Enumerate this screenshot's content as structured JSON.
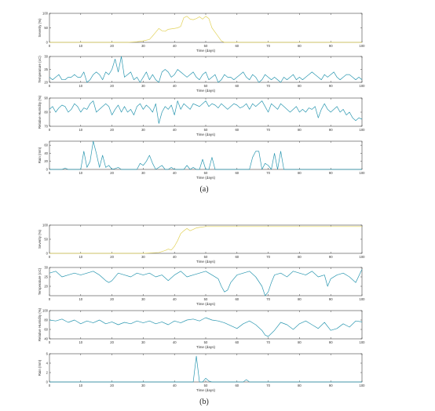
{
  "figure": {
    "caption_a": "(a)",
    "caption_b": "(b)"
  },
  "colors": {
    "severity_line": "#e2d25a",
    "series_line": "#2a97b0",
    "axis": "#444444",
    "text": "#333333"
  },
  "chart_data": [
    {
      "type": "line",
      "panel": "a",
      "ylabel": "Severity (%)",
      "xlabel": "Time (days)",
      "xlim": [
        0,
        100
      ],
      "ylim": [
        0,
        100
      ],
      "xticks": [
        0,
        10,
        20,
        30,
        40,
        50,
        60,
        70,
        80,
        90,
        100
      ],
      "yticks": [
        0,
        50,
        100
      ],
      "series": [
        {
          "color_key": "severity_line",
          "x": [
            0,
            25,
            28,
            30,
            32,
            33,
            34,
            35,
            36,
            37,
            38,
            40,
            41,
            42,
            43,
            44,
            45,
            46,
            47,
            48,
            49,
            50,
            51,
            52,
            53,
            54,
            55,
            56,
            58,
            60,
            100
          ],
          "values": [
            0,
            0,
            2,
            5,
            10,
            22,
            35,
            48,
            40,
            38,
            45,
            48,
            50,
            55,
            85,
            90,
            80,
            78,
            82,
            88,
            80,
            90,
            82,
            50,
            35,
            20,
            5,
            0,
            0,
            0,
            0
          ]
        }
      ]
    },
    {
      "type": "line",
      "panel": "a",
      "ylabel": "Temperature (oC)",
      "xlabel": "Time (days)",
      "xlim": [
        0,
        100
      ],
      "ylim": [
        20,
        30
      ],
      "xticks": [
        0,
        10,
        20,
        30,
        40,
        50,
        60,
        70,
        80,
        90,
        100
      ],
      "yticks": [
        20,
        25,
        30
      ],
      "series": [
        {
          "color_key": "series_line",
          "x": [
            0,
            1,
            2,
            3,
            4,
            5,
            6,
            7,
            8,
            9,
            10,
            11,
            12,
            13,
            14,
            15,
            16,
            17,
            18,
            19,
            20,
            21,
            22,
            23,
            24,
            25,
            26,
            27,
            28,
            29,
            30,
            31,
            32,
            33,
            34,
            35,
            36,
            37,
            38,
            39,
            40,
            41,
            42,
            43,
            44,
            45,
            46,
            47,
            48,
            49,
            50,
            51,
            52,
            53,
            54,
            55,
            56,
            57,
            58,
            59,
            60,
            61,
            62,
            63,
            64,
            65,
            66,
            67,
            68,
            69,
            70,
            71,
            72,
            73,
            74,
            75,
            76,
            77,
            78,
            79,
            80,
            81,
            82,
            83,
            84,
            85,
            86,
            87,
            88,
            89,
            90,
            91,
            92,
            93,
            94,
            95,
            96,
            97,
            98,
            99,
            100
          ],
          "values": [
            22,
            21,
            22,
            23,
            21,
            21,
            22,
            22,
            23,
            22,
            22,
            24,
            20,
            21,
            23,
            24,
            23,
            21,
            24,
            23,
            25,
            29,
            24,
            30,
            22,
            23,
            24,
            21,
            22,
            20,
            22,
            24,
            21,
            23,
            21,
            20,
            24,
            25,
            24,
            22,
            23,
            25,
            24,
            23,
            22,
            23,
            24,
            22,
            21,
            23,
            24,
            21,
            22,
            23,
            20,
            21,
            23,
            22,
            22,
            21,
            22,
            23,
            24,
            22,
            21,
            23,
            22,
            20,
            21,
            23,
            22,
            21,
            22,
            21,
            20,
            22,
            21,
            22,
            23,
            21,
            22,
            21,
            22,
            23,
            24,
            23,
            22,
            21,
            23,
            22,
            23,
            24,
            22,
            21,
            22,
            23,
            23,
            22,
            21,
            22,
            21
          ]
        }
      ]
    },
    {
      "type": "line",
      "panel": "a",
      "ylabel": "Relative Humidity (%)",
      "xlabel": "Time (days)",
      "xlim": [
        0,
        100
      ],
      "ylim": [
        70,
        90
      ],
      "xticks": [
        0,
        10,
        20,
        30,
        40,
        50,
        60,
        70,
        80,
        90,
        100
      ],
      "yticks": [
        70,
        80,
        90
      ],
      "series": [
        {
          "color_key": "series_line",
          "x": [
            0,
            1,
            2,
            3,
            4,
            5,
            6,
            7,
            8,
            9,
            10,
            11,
            12,
            13,
            14,
            15,
            16,
            17,
            18,
            19,
            20,
            21,
            22,
            23,
            24,
            25,
            26,
            27,
            28,
            29,
            30,
            31,
            32,
            33,
            34,
            35,
            36,
            37,
            38,
            39,
            40,
            41,
            42,
            43,
            44,
            45,
            46,
            47,
            48,
            49,
            50,
            51,
            52,
            53,
            54,
            55,
            56,
            57,
            58,
            59,
            60,
            61,
            62,
            63,
            64,
            65,
            66,
            67,
            68,
            69,
            70,
            71,
            72,
            73,
            74,
            75,
            76,
            77,
            78,
            79,
            80,
            81,
            82,
            83,
            84,
            85,
            86,
            87,
            88,
            89,
            90,
            91,
            92,
            93,
            94,
            95,
            96,
            97,
            98,
            99,
            100
          ],
          "values": [
            82,
            84,
            80,
            83,
            85,
            84,
            80,
            82,
            86,
            84,
            80,
            83,
            82,
            86,
            88,
            80,
            82,
            84,
            86,
            84,
            78,
            82,
            85,
            80,
            84,
            80,
            82,
            78,
            84,
            86,
            82,
            85,
            83,
            80,
            86,
            72,
            80,
            84,
            82,
            85,
            78,
            88,
            82,
            86,
            84,
            82,
            86,
            85,
            84,
            86,
            88,
            84,
            86,
            85,
            83,
            86,
            84,
            82,
            84,
            86,
            85,
            83,
            84,
            86,
            82,
            86,
            84,
            86,
            88,
            84,
            80,
            86,
            84,
            82,
            86,
            84,
            82,
            80,
            82,
            84,
            80,
            82,
            80,
            83,
            82,
            84,
            76,
            82,
            86,
            82,
            80,
            82,
            84,
            80,
            82,
            78,
            80,
            76,
            74,
            76,
            75
          ]
        }
      ]
    },
    {
      "type": "line",
      "panel": "a",
      "ylabel": "Rain (mm)",
      "xlabel": "Time (days)",
      "xlim": [
        0,
        100
      ],
      "ylim": [
        0,
        70
      ],
      "xticks": [
        0,
        10,
        20,
        30,
        40,
        50,
        60,
        70,
        80,
        90,
        100
      ],
      "yticks": [
        0,
        20,
        40,
        60
      ],
      "series": [
        {
          "color_key": "series_line",
          "x": [
            0,
            4,
            5,
            6,
            10,
            11,
            12,
            13,
            14,
            15,
            16,
            17,
            18,
            19,
            20,
            21,
            22,
            23,
            24,
            28,
            29,
            30,
            31,
            32,
            33,
            34,
            35,
            36,
            37,
            38,
            39,
            40,
            43,
            44,
            45,
            46,
            47,
            48,
            49,
            50,
            51,
            52,
            53,
            58,
            62,
            64,
            65,
            66,
            67,
            68,
            69,
            70,
            71,
            72,
            73,
            74,
            75,
            100
          ],
          "values": [
            0,
            0,
            3,
            0,
            0,
            45,
            5,
            20,
            70,
            40,
            5,
            35,
            5,
            10,
            0,
            2,
            5,
            0,
            0,
            0,
            15,
            10,
            20,
            35,
            15,
            0,
            5,
            10,
            0,
            0,
            5,
            0,
            0,
            10,
            0,
            5,
            0,
            0,
            25,
            0,
            0,
            30,
            0,
            0,
            0,
            0,
            30,
            45,
            45,
            0,
            15,
            10,
            0,
            40,
            0,
            45,
            0,
            0
          ]
        }
      ]
    },
    {
      "type": "line",
      "panel": "b",
      "ylabel": "Severity (%)",
      "xlabel": "Time (days)",
      "xlim": [
        0,
        100
      ],
      "ylim": [
        0,
        100
      ],
      "xticks": [
        0,
        10,
        20,
        30,
        40,
        50,
        60,
        70,
        80,
        90,
        100
      ],
      "yticks": [
        0,
        50,
        100
      ],
      "series": [
        {
          "color_key": "severity_line",
          "x": [
            0,
            30,
            35,
            37,
            38,
            39,
            40,
            41,
            42,
            43,
            44,
            45,
            46,
            47,
            48,
            50,
            55,
            60,
            100
          ],
          "values": [
            0,
            0,
            3,
            10,
            15,
            12,
            25,
            45,
            70,
            80,
            88,
            80,
            85,
            90,
            92,
            95,
            95,
            95,
            95
          ]
        }
      ]
    },
    {
      "type": "line",
      "panel": "b",
      "ylabel": "Temperature (oC)",
      "xlabel": "Time (days)",
      "xlim": [
        0,
        100
      ],
      "ylim": [
        15,
        30
      ],
      "xticks": [
        0,
        10,
        20,
        30,
        40,
        50,
        60,
        70,
        80,
        90,
        100
      ],
      "yticks": [
        20,
        25,
        30
      ],
      "series": [
        {
          "color_key": "series_line",
          "x": [
            0,
            2,
            4,
            6,
            8,
            10,
            12,
            14,
            16,
            18,
            19,
            20,
            22,
            24,
            26,
            28,
            30,
            32,
            34,
            36,
            38,
            40,
            42,
            44,
            46,
            48,
            50,
            52,
            54,
            55,
            56,
            57,
            58,
            60,
            62,
            64,
            66,
            68,
            69,
            70,
            71,
            72,
            74,
            76,
            78,
            80,
            82,
            84,
            86,
            88,
            89,
            90,
            92,
            94,
            96,
            98,
            100
          ],
          "values": [
            27,
            28,
            25,
            26,
            27,
            26,
            27,
            28,
            26,
            23,
            22,
            23,
            27,
            26,
            25,
            27,
            26,
            27,
            25,
            26,
            23,
            26,
            28,
            25,
            26,
            27,
            28,
            26,
            24,
            20,
            17,
            18,
            22,
            26,
            27,
            28,
            25,
            20,
            15,
            17,
            22,
            26,
            27,
            25,
            28,
            27,
            26,
            28,
            25,
            26,
            20,
            24,
            26,
            27,
            25,
            22,
            29
          ]
        }
      ]
    },
    {
      "type": "line",
      "panel": "b",
      "ylabel": "Relative Humidity (%)",
      "xlabel": "Time (days)",
      "xlim": [
        0,
        100
      ],
      "ylim": [
        40,
        100
      ],
      "xticks": [
        0,
        10,
        20,
        30,
        40,
        50,
        60,
        70,
        80,
        90,
        100
      ],
      "yticks": [
        40,
        60,
        80,
        100
      ],
      "series": [
        {
          "color_key": "series_line",
          "x": [
            0,
            2,
            4,
            6,
            8,
            10,
            12,
            14,
            16,
            18,
            20,
            22,
            24,
            26,
            28,
            30,
            32,
            34,
            36,
            38,
            40,
            42,
            44,
            46,
            48,
            50,
            52,
            54,
            56,
            58,
            60,
            62,
            64,
            66,
            68,
            69,
            70,
            72,
            74,
            76,
            78,
            80,
            82,
            84,
            86,
            88,
            90,
            92,
            94,
            96,
            98,
            100
          ],
          "values": [
            80,
            78,
            82,
            75,
            80,
            72,
            78,
            74,
            80,
            72,
            76,
            70,
            75,
            72,
            78,
            74,
            78,
            72,
            76,
            70,
            78,
            74,
            80,
            82,
            78,
            85,
            80,
            78,
            74,
            68,
            62,
            72,
            78,
            70,
            58,
            48,
            45,
            58,
            75,
            70,
            60,
            72,
            78,
            70,
            62,
            75,
            58,
            62,
            72,
            65,
            78,
            76
          ]
        }
      ]
    },
    {
      "type": "line",
      "panel": "b",
      "ylabel": "Rain (mm)",
      "xlabel": "Time (days)",
      "xlim": [
        0,
        100
      ],
      "ylim": [
        0,
        6
      ],
      "xticks": [
        0,
        10,
        20,
        30,
        40,
        50,
        60,
        70,
        80,
        90,
        100
      ],
      "yticks": [
        0,
        2,
        4,
        6
      ],
      "series": [
        {
          "color_key": "series_line",
          "x": [
            0,
            46,
            47,
            48,
            49,
            50,
            51,
            52,
            53,
            62,
            63,
            64,
            65,
            100
          ],
          "values": [
            0,
            0,
            5.5,
            0,
            0,
            0.8,
            0.2,
            0,
            0,
            0,
            0.5,
            0,
            0,
            0
          ]
        }
      ]
    }
  ]
}
